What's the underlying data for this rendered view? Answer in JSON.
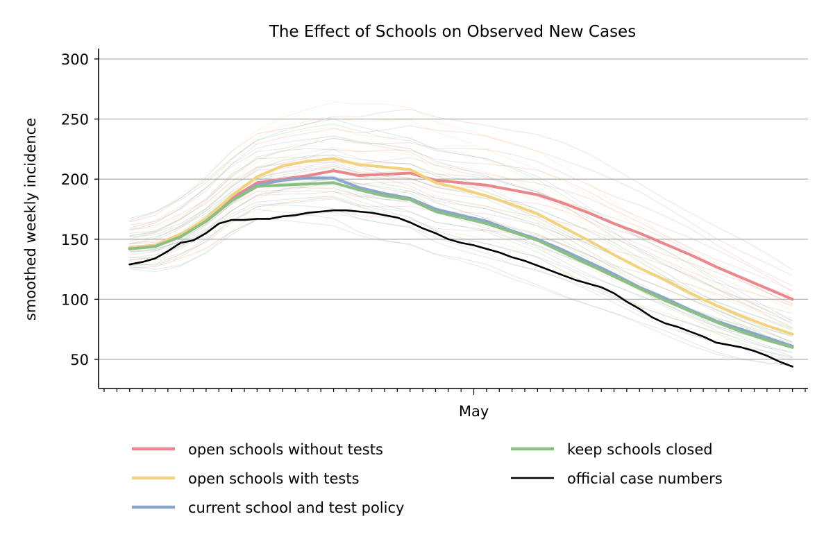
{
  "chart_data": {
    "type": "line",
    "title": "The Effect of Schools on Observed New Cases",
    "xlabel": "",
    "ylabel": "smoothed weekly incidence",
    "x_tick_labels": [
      {
        "day": 30,
        "label": "May"
      }
    ],
    "x_range": [
      1,
      56
    ],
    "ylim": [
      25,
      307
    ],
    "y_ticks": [
      50,
      100,
      150,
      200,
      250,
      300
    ],
    "grid": "horizontal",
    "legend_position": "bottom",
    "legend_columns": 2,
    "colors": {
      "open_without_tests": "#e8878c",
      "open_with_tests": "#f3d27f",
      "current_policy": "#8aa6cb",
      "keep_closed": "#8bbf84",
      "official": "#000000"
    },
    "series": [
      {
        "name": "open schools without tests",
        "color": "#e8878c",
        "x": [
          3,
          5,
          7,
          9,
          11,
          13,
          15,
          17,
          19,
          21,
          23,
          25,
          27,
          29,
          31,
          33,
          35,
          37,
          39,
          41,
          43,
          45,
          47,
          49,
          51,
          53,
          55
        ],
        "values": [
          143,
          145,
          154,
          166,
          184,
          197,
          200,
          203,
          207,
          203,
          204,
          205,
          199,
          197,
          195,
          191,
          187,
          180,
          172,
          163,
          155,
          146,
          137,
          127,
          118,
          109,
          100
        ]
      },
      {
        "name": "open schools with tests",
        "color": "#f3d27f",
        "x": [
          3,
          5,
          7,
          9,
          11,
          13,
          15,
          17,
          19,
          21,
          23,
          25,
          27,
          29,
          31,
          33,
          35,
          37,
          39,
          41,
          43,
          45,
          47,
          49,
          51,
          53,
          55
        ],
        "values": [
          143,
          145,
          154,
          167,
          186,
          202,
          211,
          215,
          217,
          212,
          210,
          208,
          197,
          192,
          186,
          179,
          171,
          160,
          149,
          137,
          126,
          116,
          105,
          95,
          86,
          78,
          71
        ]
      },
      {
        "name": "current school and test policy",
        "color": "#8aa6cb",
        "x": [
          3,
          5,
          7,
          9,
          11,
          13,
          15,
          17,
          19,
          21,
          23,
          25,
          27,
          29,
          31,
          33,
          35,
          37,
          39,
          41,
          43,
          45,
          47,
          49,
          51,
          53,
          55
        ],
        "values": [
          142,
          144,
          152,
          165,
          182,
          195,
          199,
          201,
          201,
          193,
          188,
          184,
          175,
          170,
          165,
          157,
          150,
          141,
          131,
          121,
          110,
          101,
          91,
          82,
          75,
          68,
          61
        ]
      },
      {
        "name": "keep schools closed",
        "color": "#8bbf84",
        "x": [
          3,
          5,
          7,
          9,
          11,
          13,
          15,
          17,
          19,
          21,
          23,
          25,
          27,
          29,
          31,
          33,
          35,
          37,
          39,
          41,
          43,
          45,
          47,
          49,
          51,
          53,
          55
        ],
        "values": [
          142,
          144,
          152,
          165,
          182,
          194,
          195,
          196,
          197,
          191,
          186,
          183,
          173,
          168,
          163,
          156,
          149,
          139,
          129,
          119,
          109,
          99,
          90,
          81,
          73,
          66,
          60
        ]
      },
      {
        "name": "official case numbers",
        "color": "#000000",
        "x": [
          3,
          4,
          5,
          6,
          7,
          8,
          9,
          10,
          11,
          12,
          13,
          14,
          15,
          16,
          17,
          18,
          19,
          20,
          21,
          22,
          23,
          24,
          25,
          26,
          27,
          28,
          29,
          30,
          31,
          32,
          33,
          34,
          35,
          36,
          37,
          38,
          39,
          40,
          41,
          42,
          43,
          44,
          45,
          46,
          47,
          48,
          49,
          50,
          51,
          52,
          53,
          54,
          55
        ],
        "values": [
          129,
          131,
          134,
          140,
          147,
          149,
          155,
          163,
          166,
          166,
          167,
          167,
          169,
          170,
          172,
          173,
          174,
          174,
          173,
          172,
          170,
          168,
          164,
          159,
          155,
          150,
          147,
          145,
          142,
          139,
          135,
          132,
          128,
          124,
          120,
          116,
          113,
          110,
          105,
          98,
          92,
          85,
          80,
          77,
          73,
          69,
          64,
          62,
          60,
          57,
          53,
          48,
          44
        ]
      }
    ]
  },
  "legend": {
    "items": [
      {
        "label": "open schools without tests",
        "color": "#e8878c"
      },
      {
        "label": "open schools with tests",
        "color": "#f3d27f"
      },
      {
        "label": "current school and test policy",
        "color": "#8aa6cb"
      },
      {
        "label": "keep schools closed",
        "color": "#8bbf84"
      },
      {
        "label": "official case numbers",
        "color": "#000000"
      }
    ]
  }
}
